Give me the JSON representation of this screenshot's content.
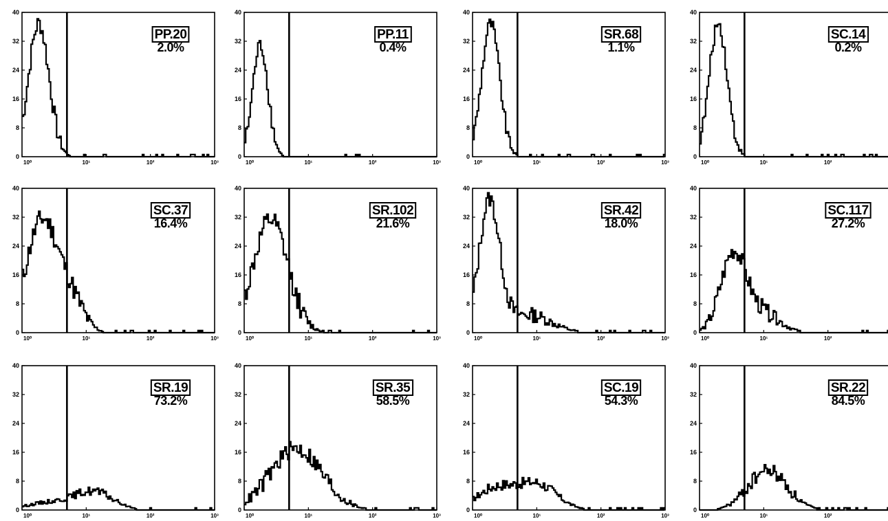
{
  "chart_data": [
    {
      "type": "line",
      "sample": "PP.20",
      "percent": "2.0%",
      "y_ticks": [
        "0",
        "8",
        "16",
        "24",
        "32",
        "40"
      ],
      "x_ticks": [
        "10⁰",
        "10¹",
        "10²",
        "10³"
      ],
      "ylim": [
        0,
        40
      ],
      "xlim_log10": [
        0,
        3
      ],
      "gate_log10": 0.7,
      "peaks": [
        {
          "mu": 0.25,
          "sigma": 0.16,
          "height": 37
        }
      ],
      "jitter": 5,
      "baseline_start": 5
    },
    {
      "type": "line",
      "sample": "PP.11",
      "percent": "0.4%",
      "y_ticks": [
        "0",
        "8",
        "16",
        "24",
        "32",
        "40"
      ],
      "x_ticks": [
        "10⁰",
        "10¹",
        "10²",
        "10³"
      ],
      "ylim": [
        0,
        40
      ],
      "xlim_log10": [
        0,
        3
      ],
      "gate_log10": 0.7,
      "peaks": [
        {
          "mu": 0.24,
          "sigma": 0.12,
          "height": 31
        }
      ],
      "jitter": 4,
      "baseline_start": 0
    },
    {
      "type": "line",
      "sample": "SR.68",
      "percent": "1.1%",
      "y_ticks": [
        "0",
        "8",
        "16",
        "24",
        "32",
        "40"
      ],
      "x_ticks": [
        "10⁰",
        "10¹",
        "10²",
        "10³"
      ],
      "ylim": [
        0,
        40
      ],
      "xlim_log10": [
        0,
        3
      ],
      "gate_log10": 0.7,
      "peaks": [
        {
          "mu": 0.27,
          "sigma": 0.14,
          "height": 37
        }
      ],
      "jitter": 4,
      "baseline_start": 2
    },
    {
      "type": "line",
      "sample": "SC.14",
      "percent": "0.2%",
      "y_ticks": [
        "0",
        "8",
        "16",
        "24",
        "32",
        "40"
      ],
      "x_ticks": [
        "10⁰",
        "10¹",
        "10²",
        "10³"
      ],
      "ylim": [
        0,
        40
      ],
      "xlim_log10": [
        0,
        3
      ],
      "gate_log10": 0.7,
      "peaks": [
        {
          "mu": 0.28,
          "sigma": 0.14,
          "height": 37
        }
      ],
      "jitter": 4,
      "baseline_start": 2
    },
    {
      "type": "line",
      "sample": "SC.37",
      "percent": "16.4%",
      "y_ticks": [
        "0",
        "8",
        "16",
        "24",
        "32",
        "40"
      ],
      "x_ticks": [
        "10⁰",
        "10¹",
        "10²",
        "10³"
      ],
      "ylim": [
        0,
        40
      ],
      "xlim_log10": [
        0,
        3
      ],
      "gate_log10": 0.7,
      "peaks": [
        {
          "mu": 0.3,
          "sigma": 0.25,
          "height": 31
        },
        {
          "mu": 0.75,
          "sigma": 0.2,
          "height": 8
        }
      ],
      "jitter": 6,
      "baseline_start": 3
    },
    {
      "type": "line",
      "sample": "SR.102",
      "percent": "21.6%",
      "y_ticks": [
        "0",
        "8",
        "16",
        "24",
        "32",
        "40"
      ],
      "x_ticks": [
        "10⁰",
        "10¹",
        "10²",
        "10³"
      ],
      "ylim": [
        0,
        40
      ],
      "xlim_log10": [
        0,
        3
      ],
      "gate_log10": 0.7,
      "peaks": [
        {
          "mu": 0.4,
          "sigma": 0.27,
          "height": 31
        }
      ],
      "jitter": 6,
      "baseline_start": 4
    },
    {
      "type": "line",
      "sample": "SR.42",
      "percent": "18.0%",
      "y_ticks": [
        "0",
        "8",
        "16",
        "24",
        "32",
        "40"
      ],
      "x_ticks": [
        "10⁰",
        "10¹",
        "10²",
        "10³"
      ],
      "ylim": [
        0,
        40
      ],
      "xlim_log10": [
        0,
        3
      ],
      "gate_log10": 0.7,
      "peaks": [
        {
          "mu": 0.25,
          "sigma": 0.16,
          "height": 36
        },
        {
          "mu": 0.85,
          "sigma": 0.35,
          "height": 5
        }
      ],
      "jitter": 5,
      "baseline_start": 3
    },
    {
      "type": "line",
      "sample": "SC.117",
      "percent": "27.2%",
      "y_ticks": [
        "0",
        "8",
        "16",
        "24",
        "32",
        "40"
      ],
      "x_ticks": [
        "10⁰",
        "10¹",
        "10²",
        "10³"
      ],
      "ylim": [
        0,
        40
      ],
      "xlim_log10": [
        0,
        3
      ],
      "gate_log10": 0.7,
      "peaks": [
        {
          "mu": 0.52,
          "sigma": 0.2,
          "height": 22
        },
        {
          "mu": 1.0,
          "sigma": 0.25,
          "height": 5
        }
      ],
      "jitter": 5,
      "baseline_start": 0
    },
    {
      "type": "line",
      "sample": "SR.19",
      "percent": "73.2%",
      "y_ticks": [
        "0",
        "8",
        "16",
        "24",
        "32",
        "40"
      ],
      "x_ticks": [
        "10⁰",
        "10¹",
        "10²",
        "10³"
      ],
      "ylim": [
        0,
        40
      ],
      "xlim_log10": [
        0,
        3
      ],
      "gate_log10": 0.7,
      "peaks": [
        {
          "mu": 1.1,
          "sigma": 0.3,
          "height": 5
        },
        {
          "mu": 0.4,
          "sigma": 0.35,
          "height": 2
        }
      ],
      "jitter": 3,
      "baseline_start": 0
    },
    {
      "type": "line",
      "sample": "SR.35",
      "percent": "58.5%",
      "y_ticks": [
        "0",
        "8",
        "16",
        "24",
        "32",
        "40"
      ],
      "x_ticks": [
        "10⁰",
        "10¹",
        "10²",
        "10³"
      ],
      "ylim": [
        0,
        40
      ],
      "xlim_log10": [
        0,
        3
      ],
      "gate_log10": 0.7,
      "peaks": [
        {
          "mu": 0.8,
          "sigma": 0.4,
          "height": 17
        }
      ],
      "jitter": 5,
      "baseline_start": 1
    },
    {
      "type": "line",
      "sample": "SC.19",
      "percent": "54.3%",
      "y_ticks": [
        "0",
        "8",
        "16",
        "24",
        "32",
        "40"
      ],
      "x_ticks": [
        "10⁰",
        "10¹",
        "10²",
        "10³"
      ],
      "ylim": [
        0,
        40
      ],
      "xlim_log10": [
        0,
        3
      ],
      "gate_log10": 0.7,
      "peaks": [
        {
          "mu": 0.35,
          "sigma": 0.3,
          "height": 6
        },
        {
          "mu": 1.0,
          "sigma": 0.3,
          "height": 7
        }
      ],
      "jitter": 3,
      "baseline_start": 0
    },
    {
      "type": "line",
      "sample": "SR.22",
      "percent": "84.5%",
      "y_ticks": [
        "0",
        "8",
        "16",
        "24",
        "32",
        "40"
      ],
      "x_ticks": [
        "10⁰",
        "10¹",
        "10²",
        "10³"
      ],
      "ylim": [
        0,
        40
      ],
      "xlim_log10": [
        0,
        3
      ],
      "gate_log10": 0.7,
      "peaks": [
        {
          "mu": 1.05,
          "sigma": 0.3,
          "height": 11
        }
      ],
      "jitter": 4,
      "baseline_start": 0
    }
  ]
}
